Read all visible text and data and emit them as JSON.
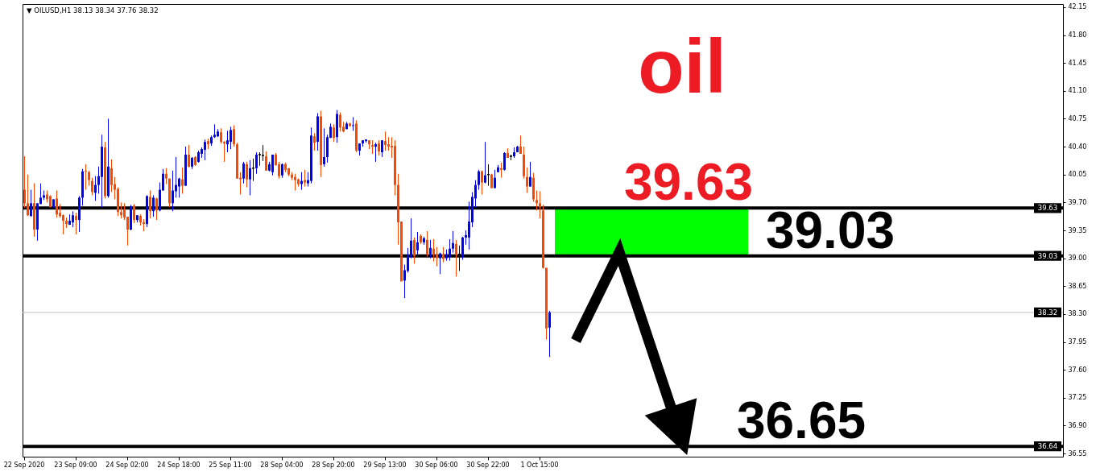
{
  "chart_data": {
    "type": "candlestick",
    "title": "▼ OILUSD,H1  38.13 38.34 37.76 38.32",
    "categories": [
      "22 Sep 2020",
      null,
      null,
      null,
      null,
      null,
      null,
      null,
      null,
      null,
      null,
      null,
      null,
      null,
      null,
      null,
      "23 Sep 09:00",
      null,
      null,
      null,
      null,
      null,
      null,
      null,
      null,
      null,
      null,
      null,
      null,
      null,
      null,
      null,
      "24 Sep 02:00",
      null,
      null,
      null,
      null,
      null,
      null,
      null,
      null,
      null,
      null,
      null,
      null,
      null,
      null,
      null,
      "24 Sep 18:00",
      null,
      null,
      null,
      null,
      null,
      null,
      null,
      null,
      null,
      null,
      null,
      null,
      null,
      null,
      null,
      "25 Sep 11:00",
      null,
      null,
      null,
      null,
      null,
      null,
      null,
      null,
      null,
      null,
      null,
      null,
      null,
      null,
      null,
      "28 Sep 04:00",
      null,
      null,
      null,
      null,
      null,
      null,
      null,
      null,
      null,
      null,
      null,
      null,
      null,
      null,
      null,
      "28 Sep 20:00",
      null,
      null,
      null,
      null,
      null,
      null,
      null,
      null,
      null,
      null,
      null,
      null,
      null,
      null,
      null,
      "29 Sep 13:00",
      null,
      null,
      null,
      null,
      null,
      null,
      null,
      null,
      null,
      null,
      null,
      null,
      null,
      null,
      null,
      "30 Sep 06:00",
      null,
      null,
      null,
      null,
      null,
      null,
      null,
      null,
      null,
      null,
      null,
      null,
      null,
      null,
      null,
      "30 Sep 22:00",
      null,
      null,
      null,
      null,
      null,
      null,
      null,
      null,
      null,
      null,
      null,
      null,
      null,
      null,
      null,
      "1 Oct 15:00",
      null,
      null,
      null,
      null,
      null,
      null,
      null,
      null,
      null,
      null,
      null,
      null,
      null,
      null,
      null,
      null,
      null,
      null,
      null,
      null,
      null,
      null,
      null,
      null,
      null,
      null,
      null,
      null,
      null,
      null,
      null,
      null,
      null,
      null,
      null,
      null,
      null,
      null,
      null,
      null,
      null,
      null,
      null,
      null,
      null,
      null,
      null,
      null,
      null,
      null,
      null,
      null,
      null,
      null,
      null,
      null,
      null,
      null,
      null,
      null,
      null,
      null,
      null,
      null,
      null,
      null,
      null,
      null,
      null,
      null,
      null,
      null,
      null,
      null,
      null,
      null,
      null,
      null,
      null,
      null,
      null,
      null,
      null,
      null,
      null,
      null,
      null,
      null,
      null,
      null,
      null,
      null,
      null,
      null,
      null,
      null,
      null,
      null,
      null,
      null,
      null,
      null,
      null,
      null,
      null,
      null,
      null,
      null,
      null,
      null,
      null,
      null,
      null,
      null,
      null,
      null,
      null,
      null,
      null,
      null,
      null,
      null,
      null,
      null,
      null,
      null,
      null,
      null,
      null,
      null,
      null,
      null,
      null,
      null,
      null,
      null,
      null,
      null,
      null,
      null,
      null,
      null,
      null,
      null,
      null,
      null,
      null,
      null,
      null,
      null,
      null,
      null,
      null,
      null,
      null,
      null,
      null,
      null,
      null,
      null,
      null,
      null
    ],
    "ohlc": [
      [
        39.86,
        40.28,
        39.63,
        39.69
      ],
      [
        39.69,
        40.05,
        39.53,
        39.54
      ],
      [
        39.53,
        39.86,
        39.52,
        39.69
      ],
      [
        39.69,
        39.94,
        39.27,
        39.36
      ],
      [
        39.36,
        39.69,
        39.22,
        39.69
      ],
      [
        39.68,
        39.94,
        39.68,
        39.76
      ],
      [
        39.76,
        39.85,
        39.73,
        39.79
      ],
      [
        39.8,
        39.85,
        39.7,
        39.74
      ],
      [
        39.78,
        39.79,
        39.64,
        39.64
      ],
      [
        39.64,
        39.74,
        39.63,
        39.74
      ],
      [
        39.75,
        39.85,
        39.51,
        39.55
      ],
      [
        39.57,
        39.68,
        39.51,
        39.53
      ],
      [
        39.54,
        39.55,
        39.3,
        39.47
      ],
      [
        39.47,
        39.51,
        39.38,
        39.43
      ],
      [
        39.42,
        39.55,
        39.42,
        39.47
      ],
      [
        39.45,
        39.59,
        39.39,
        39.54
      ],
      [
        39.53,
        39.57,
        39.3,
        39.48
      ],
      [
        39.48,
        39.78,
        39.33,
        39.76
      ],
      [
        39.76,
        40.12,
        39.66,
        40.09
      ],
      [
        40.1,
        40.18,
        39.86,
        40.09
      ],
      [
        40.08,
        40.1,
        39.91,
        39.98
      ],
      [
        39.97,
        40.01,
        39.79,
        39.83
      ],
      [
        39.82,
        40.03,
        39.72,
        39.92
      ],
      [
        39.92,
        40.15,
        39.81,
        40.03
      ],
      [
        40.02,
        40.55,
        39.64,
        40.4
      ],
      [
        40.39,
        40.46,
        39.75,
        39.78
      ],
      [
        39.78,
        40.75,
        39.76,
        40.15
      ],
      [
        40.13,
        40.24,
        39.83,
        39.92
      ],
      [
        39.93,
        40.02,
        39.74,
        39.86
      ],
      [
        39.87,
        39.89,
        39.53,
        39.58
      ],
      [
        39.58,
        39.7,
        39.5,
        39.54
      ],
      [
        39.61,
        39.69,
        39.48,
        39.51
      ],
      [
        39.52,
        39.52,
        39.16,
        39.36
      ],
      [
        39.36,
        39.67,
        39.35,
        39.65
      ],
      [
        39.66,
        39.68,
        39.44,
        39.48
      ],
      [
        39.48,
        39.54,
        39.45,
        39.54
      ],
      [
        39.53,
        39.55,
        39.41,
        39.45
      ],
      [
        39.45,
        39.49,
        39.34,
        39.43
      ],
      [
        39.43,
        39.79,
        39.39,
        39.78
      ],
      [
        39.77,
        39.85,
        39.5,
        39.59
      ],
      [
        39.59,
        39.79,
        39.52,
        39.76
      ],
      [
        39.75,
        39.76,
        39.48,
        39.6
      ],
      [
        39.6,
        39.95,
        39.59,
        39.86
      ],
      [
        39.85,
        40.12,
        39.85,
        40.06
      ],
      [
        40.06,
        40.13,
        39.93,
        40.0
      ],
      [
        40.0,
        40.0,
        39.64,
        39.69
      ],
      [
        39.69,
        40.1,
        39.59,
        39.85
      ],
      [
        39.84,
        40.27,
        39.76,
        39.92
      ],
      [
        39.9,
        40.01,
        39.76,
        40.0
      ],
      [
        39.99,
        40.14,
        39.81,
        39.91
      ],
      [
        39.91,
        40.4,
        39.91,
        40.3
      ],
      [
        40.3,
        40.42,
        40.14,
        40.15
      ],
      [
        40.15,
        40.27,
        40.12,
        40.26
      ],
      [
        40.27,
        40.28,
        40.16,
        40.17
      ],
      [
        40.21,
        40.35,
        40.2,
        40.33
      ],
      [
        40.31,
        40.39,
        40.26,
        40.37
      ],
      [
        40.36,
        40.49,
        40.23,
        40.46
      ],
      [
        40.47,
        40.5,
        40.37,
        40.43
      ],
      [
        40.44,
        40.54,
        40.41,
        40.52
      ],
      [
        40.52,
        40.68,
        40.51,
        40.55
      ],
      [
        40.53,
        40.62,
        40.52,
        40.59
      ],
      [
        40.58,
        40.63,
        40.44,
        40.46
      ],
      [
        40.46,
        40.47,
        40.21,
        40.44
      ],
      [
        40.43,
        40.6,
        40.33,
        40.48
      ],
      [
        40.46,
        40.65,
        40.37,
        40.61
      ],
      [
        40.62,
        40.67,
        40.4,
        40.43
      ],
      [
        40.43,
        40.45,
        40.0,
        40.0
      ],
      [
        40.01,
        40.08,
        39.8,
        39.99
      ],
      [
        40.0,
        40.21,
        39.94,
        40.19
      ],
      [
        40.18,
        40.21,
        39.89,
        39.99
      ],
      [
        39.99,
        40.23,
        39.79,
        40.13
      ],
      [
        40.13,
        40.25,
        39.97,
        40.13
      ],
      [
        40.13,
        40.33,
        40.06,
        40.3
      ],
      [
        40.3,
        40.33,
        40.16,
        40.3
      ],
      [
        40.29,
        40.42,
        40.22,
        40.29
      ],
      [
        40.28,
        40.34,
        40.1,
        40.1
      ],
      [
        40.1,
        40.21,
        40.09,
        40.18
      ],
      [
        40.08,
        40.3,
        40.04,
        40.3
      ],
      [
        40.3,
        40.32,
        40.16,
        40.17
      ],
      [
        40.18,
        40.21,
        40.0,
        40.03
      ],
      [
        40.04,
        40.19,
        40.01,
        40.18
      ],
      [
        40.18,
        40.2,
        40.08,
        40.11
      ],
      [
        40.13,
        40.13,
        40.03,
        40.05
      ],
      [
        40.05,
        40.08,
        39.98,
        40.01
      ],
      [
        40.02,
        40.06,
        39.85,
        39.98
      ],
      [
        39.99,
        40.0,
        39.9,
        39.93
      ],
      [
        39.93,
        40.08,
        39.86,
        39.97
      ],
      [
        39.98,
        40.11,
        39.9,
        39.95
      ],
      [
        39.94,
        40.08,
        39.9,
        39.98
      ],
      [
        39.97,
        40.64,
        39.94,
        40.54
      ],
      [
        40.53,
        40.57,
        40.35,
        40.45
      ],
      [
        40.46,
        40.82,
        40.35,
        40.78
      ],
      [
        40.78,
        40.85,
        40.02,
        40.17
      ],
      [
        40.18,
        40.63,
        40.15,
        40.27
      ],
      [
        40.27,
        40.55,
        40.2,
        40.52
      ],
      [
        40.51,
        40.69,
        40.51,
        40.65
      ],
      [
        40.64,
        40.68,
        40.46,
        40.51
      ],
      [
        40.52,
        40.86,
        40.45,
        40.81
      ],
      [
        40.8,
        40.83,
        40.59,
        40.64
      ],
      [
        40.65,
        40.71,
        40.58,
        40.59
      ],
      [
        40.62,
        40.71,
        40.62,
        40.69
      ],
      [
        40.69,
        40.7,
        40.65,
        40.66
      ],
      [
        40.66,
        40.77,
        40.6,
        40.67
      ],
      [
        40.69,
        40.73,
        40.33,
        40.35
      ],
      [
        40.35,
        40.44,
        40.29,
        40.44
      ],
      [
        40.44,
        40.48,
        40.4,
        40.48
      ],
      [
        40.47,
        40.49,
        40.45,
        40.49
      ],
      [
        40.48,
        40.48,
        40.37,
        40.43
      ],
      [
        40.42,
        40.48,
        40.31,
        40.4
      ],
      [
        40.4,
        40.45,
        40.21,
        40.43
      ],
      [
        40.44,
        40.48,
        40.29,
        40.34
      ],
      [
        40.33,
        40.48,
        40.27,
        40.48
      ],
      [
        40.47,
        40.59,
        40.35,
        40.42
      ],
      [
        40.43,
        40.52,
        40.35,
        40.4
      ],
      [
        40.41,
        40.52,
        40.26,
        40.39
      ],
      [
        40.41,
        40.48,
        39.79,
        39.92
      ],
      [
        39.92,
        40.06,
        39.17,
        39.45
      ],
      [
        39.46,
        39.46,
        38.71,
        38.71
      ],
      [
        38.72,
        38.92,
        38.5,
        38.85
      ],
      [
        38.84,
        39.13,
        38.82,
        39.01
      ],
      [
        39.03,
        39.5,
        39.0,
        39.22
      ],
      [
        39.23,
        39.26,
        38.93,
        39.03
      ],
      [
        39.1,
        39.33,
        39.05,
        39.2
      ],
      [
        39.28,
        39.3,
        39.18,
        39.2
      ],
      [
        39.2,
        39.27,
        39.17,
        39.25
      ],
      [
        39.23,
        39.34,
        39.02,
        39.05
      ],
      [
        39.05,
        39.23,
        39.0,
        39.13
      ],
      [
        39.12,
        39.24,
        38.96,
        39.05
      ],
      [
        39.05,
        39.14,
        38.9,
        39.0
      ],
      [
        39.0,
        39.07,
        38.8,
        39.06
      ],
      [
        39.05,
        39.14,
        38.95,
        38.99
      ],
      [
        39.0,
        39.11,
        38.97,
        39.05
      ],
      [
        39.04,
        39.24,
        38.97,
        39.12
      ],
      [
        39.12,
        39.34,
        39.07,
        39.19
      ],
      [
        39.18,
        39.23,
        38.77,
        39.04
      ],
      [
        39.05,
        39.16,
        38.84,
        39.05
      ],
      [
        39.03,
        39.27,
        38.98,
        39.26
      ],
      [
        39.26,
        39.35,
        39.17,
        39.29
      ],
      [
        39.26,
        39.71,
        39.11,
        39.46
      ],
      [
        39.45,
        39.83,
        39.39,
        39.77
      ],
      [
        39.75,
        39.98,
        39.64,
        39.92
      ],
      [
        39.92,
        40.11,
        39.86,
        40.09
      ],
      [
        40.09,
        40.1,
        39.8,
        39.95
      ],
      [
        39.95,
        40.46,
        39.94,
        40.04
      ],
      [
        40.05,
        40.18,
        39.91,
        40.05
      ],
      [
        40.05,
        40.06,
        39.88,
        39.88
      ],
      [
        39.88,
        40.11,
        39.88,
        40.01
      ],
      [
        40.08,
        40.17,
        40.08,
        40.14
      ],
      [
        40.13,
        40.2,
        40.01,
        40.11
      ],
      [
        40.11,
        40.33,
        40.1,
        40.32
      ],
      [
        40.32,
        40.38,
        40.26,
        40.26
      ],
      [
        40.28,
        40.3,
        40.23,
        40.28
      ],
      [
        40.28,
        40.39,
        40.26,
        40.33
      ],
      [
        40.33,
        40.41,
        40.33,
        40.4
      ],
      [
        40.4,
        40.54,
        40.31,
        40.31
      ],
      [
        40.3,
        40.4,
        40.0,
        40.03
      ],
      [
        40.02,
        40.14,
        39.82,
        39.9
      ],
      [
        39.9,
        40.21,
        39.9,
        40.02
      ],
      [
        40.01,
        40.07,
        39.71,
        39.74
      ],
      [
        39.73,
        39.85,
        39.6,
        39.69
      ],
      [
        39.69,
        39.84,
        39.5,
        39.64
      ],
      [
        39.6,
        39.67,
        38.87,
        38.88
      ],
      [
        38.88,
        38.88,
        37.98,
        38.12
      ],
      [
        38.13,
        38.34,
        37.76,
        38.32
      ],
      null,
      null,
      null,
      null,
      null,
      null,
      null,
      null,
      null,
      null,
      null,
      null,
      null,
      null,
      null,
      null,
      null,
      null,
      null,
      null,
      null,
      null,
      null,
      null,
      null,
      null,
      null,
      null,
      null,
      null,
      null,
      null,
      null,
      null,
      null,
      null,
      null,
      null,
      null,
      null,
      null,
      null,
      null,
      null,
      null,
      null,
      null,
      null,
      null,
      null,
      null,
      null,
      null,
      null,
      null,
      null,
      null,
      null,
      null,
      null,
      null,
      null,
      null,
      null,
      null,
      null,
      null,
      null,
      null,
      null,
      null,
      null,
      null,
      null,
      null,
      null,
      null,
      null,
      null,
      null,
      null,
      null,
      null,
      null,
      null,
      null,
      null,
      null,
      null,
      null,
      null,
      null,
      null,
      null,
      null,
      null,
      null,
      null,
      null,
      null,
      null,
      null,
      null,
      null,
      null,
      null,
      null,
      null,
      null,
      null,
      null,
      null,
      null,
      null,
      null,
      null,
      null,
      null,
      null,
      null,
      null,
      null,
      null,
      null,
      null,
      null,
      null,
      null,
      null,
      null,
      null,
      null,
      null,
      null,
      null,
      null,
      null,
      null,
      null,
      null,
      null,
      null,
      null,
      null,
      null,
      null,
      null,
      null,
      null,
      null,
      null,
      null,
      null,
      null,
      null,
      null,
      null,
      null,
      null
    ],
    "colors": [
      "#ff4500",
      "#ff4500",
      "#0000ff",
      "#ff4500",
      "#0000ff",
      "#0000ff",
      "#0000ff",
      "#ff4500",
      "#ff4500",
      "#0000ff",
      "#ff4500",
      "#ff4500",
      "#ff4500",
      "#ff4500",
      "#0000ff",
      "#0000ff",
      "#ff4500",
      "#0000ff",
      "#0000ff",
      "#ff4500",
      "#ff4500",
      "#ff4500",
      "#0000ff",
      "#0000ff",
      "#0000ff",
      "#ff4500",
      "#0000ff",
      "#ff4500",
      "#ff4500",
      "#ff4500",
      "#ff4500",
      "#ff4500",
      "#ff4500",
      "#0000ff",
      "#ff4500",
      "#0000ff",
      "#ff4500",
      "#ff4500",
      "#0000ff",
      "#ff4500",
      "#0000ff",
      "#ff4500",
      "#0000ff",
      "#0000ff",
      "#ff4500",
      "#ff4500",
      "#0000ff",
      "#0000ff",
      "#0000ff",
      "#ff4500",
      "#0000ff",
      "#ff4500",
      "#0000ff",
      "#ff4500",
      "#0000ff",
      "#0000ff",
      "#0000ff",
      "#ff4500",
      "#0000ff",
      "#0000ff",
      "#0000ff",
      "#ff4500",
      "#ff4500",
      "#0000ff",
      "#0000ff",
      "#ff4500",
      "#ff4500",
      "#ff4500",
      "#0000ff",
      "#ff4500",
      "#0000ff",
      "#000000",
      "#0000ff",
      "#000000",
      "#000000",
      "#ff4500",
      "#0000ff",
      "#0000ff",
      "#ff4500",
      "#ff4500",
      "#0000ff",
      "#ff4500",
      "#ff4500",
      "#ff4500",
      "#ff4500",
      "#ff4500",
      "#0000ff",
      "#ff4500",
      "#0000ff",
      "#0000ff",
      "#ff4500",
      "#0000ff",
      "#ff4500",
      "#0000ff",
      "#0000ff",
      "#0000ff",
      "#ff4500",
      "#0000ff",
      "#ff4500",
      "#ff4500",
      "#0000ff",
      "#ff4500",
      "#0000ff",
      "#ff4500",
      "#0000ff",
      "#0000ff",
      "#0000ff",
      "#ff4500",
      "#ff4500",
      "#0000ff",
      "#ff4500",
      "#0000ff",
      "#ff4500",
      "#ff4500",
      "#ff4500",
      "#ff4500",
      "#ff4500",
      "#ff4500",
      "#0000ff",
      "#0000ff",
      "#0000ff",
      "#ff4500",
      "#0000ff",
      "#ff4500",
      "#0000ff",
      "#ff4500",
      "#0000ff",
      "#ff4500",
      "#ff4500",
      "#0000ff",
      "#ff4500",
      "#0000ff",
      "#0000ff",
      "#0000ff",
      "#ff4500",
      "#000000",
      "#0000ff",
      "#0000ff",
      "#0000ff",
      "#0000ff",
      "#0000ff",
      "#0000ff",
      "#ff4500",
      "#0000ff",
      "#000000",
      "#ff4500",
      "#0000ff",
      "#0000ff",
      "#ff4500",
      "#0000ff",
      "#ff4500",
      "#000000",
      "#0000ff",
      "#0000ff",
      "#ff4500",
      "#ff4500",
      "#ff4500",
      "#0000ff",
      "#ff4500",
      "#ff4500",
      "#ff4500",
      "#ff4500",
      "#ff4500",
      "#0000ff",
      null,
      null,
      null,
      null,
      null,
      null,
      null,
      null,
      null,
      null,
      null,
      null,
      null,
      null,
      null,
      null,
      null,
      null,
      null,
      null,
      null,
      null,
      null,
      null,
      null,
      null,
      null,
      null,
      null,
      null,
      null,
      null,
      null,
      null,
      null,
      null,
      null,
      null,
      null,
      null,
      null,
      null,
      null,
      null,
      null,
      null,
      null,
      null,
      null,
      null,
      null,
      null,
      null,
      null,
      null,
      null,
      null,
      null,
      null,
      null,
      null,
      null,
      null,
      null,
      null,
      null,
      null,
      null,
      null,
      null,
      null,
      null,
      null,
      null,
      null,
      null,
      null,
      null,
      null,
      null,
      null,
      null,
      null,
      null,
      null,
      null,
      null,
      null,
      null,
      null,
      null,
      null,
      null,
      null,
      null,
      null,
      null,
      null,
      null,
      null,
      null,
      null,
      null,
      null,
      null,
      null,
      null,
      null,
      null,
      null,
      null,
      null,
      null,
      null,
      null,
      null,
      null,
      null,
      null,
      null,
      null,
      null,
      null,
      null,
      null,
      null,
      null,
      null,
      null,
      null,
      null,
      null,
      null,
      null,
      null,
      null,
      null,
      null,
      null,
      null,
      null,
      null,
      null,
      null,
      null,
      null,
      null,
      null,
      null,
      null,
      null,
      null,
      null,
      null,
      null,
      null,
      null,
      null,
      null
    ],
    "ylim": [
      36.51,
      42.19
    ],
    "yticks": [
      42.15,
      {
        "value": 41.8,
        "label": "41.80"
      },
      41.45,
      {
        "value": 41.1,
        "label": "41.10"
      },
      40.75,
      {
        "value": 40.4,
        "label": "40.40"
      },
      40.05,
      {
        "value": 39.7,
        "label": "39.70"
      },
      39.35,
      {
        "value": 39.0,
        "label": "39.00"
      },
      38.65,
      {
        "value": 38.3,
        "label": "38.30"
      },
      37.95,
      {
        "value": 37.6,
        "label": "37.60"
      },
      37.25,
      {
        "value": 36.9,
        "label": "36.90"
      },
      36.55
    ],
    "ref_lines": [
      {
        "axis": "y",
        "value": 39.63,
        "label": "39.63",
        "color": "#000000"
      },
      {
        "axis": "y",
        "value": 39.03,
        "label": "39.03",
        "color": "#000000"
      },
      {
        "axis": "y",
        "value": 38.32,
        "label": "38.32",
        "color": "#c0c0c0"
      },
      {
        "axis": "y",
        "value": 36.64,
        "label": "36.64",
        "color": "#000000"
      }
    ],
    "bands": [
      {
        "axis": "y",
        "from": 39.03,
        "to": 39.63,
        "color": "#00ff00"
      }
    ],
    "annotations": [
      "oil",
      {
        "text": "39.63",
        "y": 39.63
      },
      {
        "text": "39.03",
        "y": 39.03
      },
      {
        "text": "36.65",
        "y": 36.64
      }
    ]
  }
}
